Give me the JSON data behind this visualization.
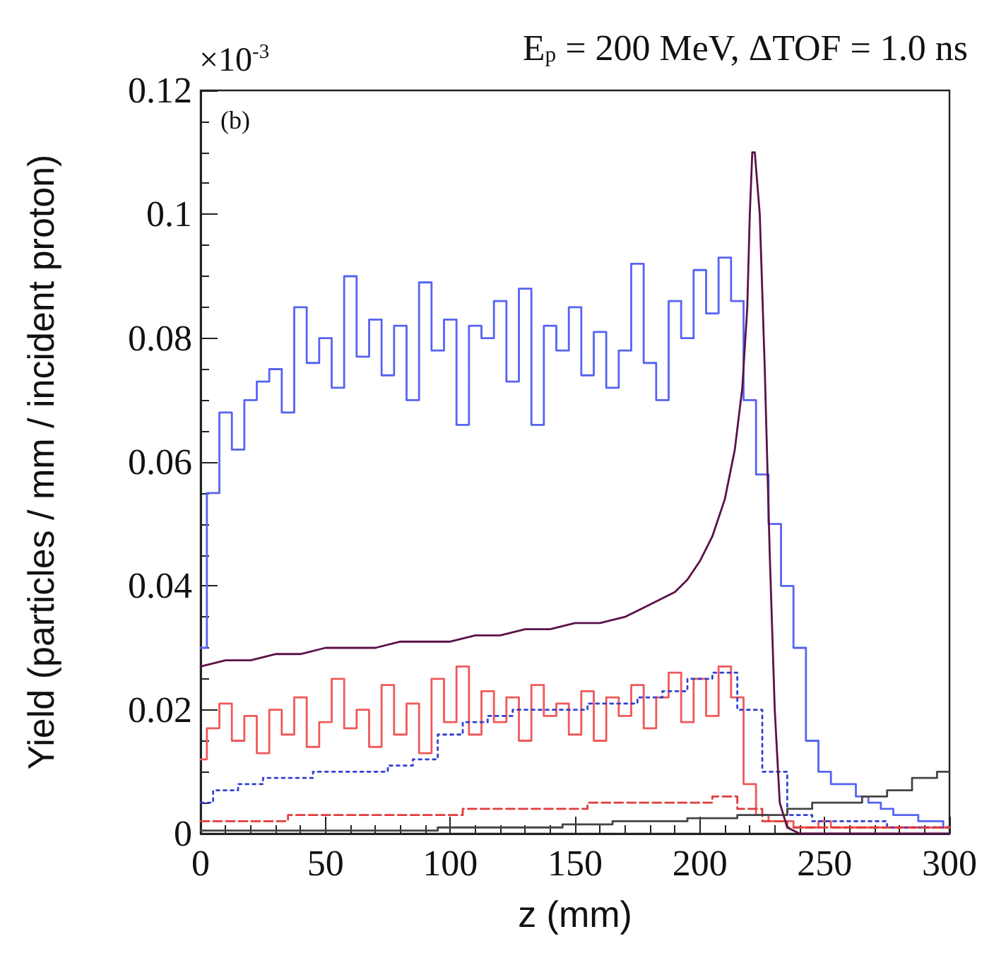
{
  "chart_data": {
    "type": "step",
    "title": "E$_{p}$ = 200 MeV, ΔTOF = 1.0 ns",
    "xlabel": "z (mm)",
    "ylabel": "Yield (particles / mm / incident proton)",
    "annotations": [
      "×10$^{-3}$",
      "(b)"
    ],
    "xlim": [
      0,
      300
    ],
    "xticks": [
      0,
      50,
      100,
      150,
      200,
      250,
      300
    ],
    "ylim": [
      0,
      0.12
    ],
    "yticks": [
      0,
      0.02,
      0.04,
      0.06,
      0.08,
      0.1,
      0.12
    ],
    "series": [
      {
        "color": "#5563f2",
        "line_style": "solid",
        "x": [
          0,
          5,
          10,
          15,
          20,
          25,
          30,
          35,
          40,
          45,
          50,
          55,
          60,
          65,
          70,
          75,
          80,
          85,
          90,
          95,
          100,
          105,
          110,
          115,
          120,
          125,
          130,
          135,
          140,
          145,
          150,
          155,
          160,
          165,
          170,
          175,
          180,
          185,
          190,
          195,
          200,
          205,
          210,
          215,
          220,
          225,
          230,
          235,
          240,
          245,
          250,
          255,
          260,
          265,
          270,
          275,
          280,
          285,
          290,
          295,
          300
        ],
        "values": [
          0.03,
          0.055,
          0.068,
          0.062,
          0.07,
          0.073,
          0.075,
          0.068,
          0.085,
          0.076,
          0.08,
          0.072,
          0.09,
          0.077,
          0.083,
          0.074,
          0.082,
          0.07,
          0.089,
          0.078,
          0.083,
          0.066,
          0.082,
          0.08,
          0.086,
          0.073,
          0.088,
          0.066,
          0.082,
          0.078,
          0.085,
          0.074,
          0.081,
          0.072,
          0.078,
          0.092,
          0.076,
          0.07,
          0.086,
          0.08,
          0.091,
          0.084,
          0.093,
          0.086,
          0.07,
          0.058,
          0.05,
          0.04,
          0.03,
          0.015,
          0.01,
          0.008,
          0.008,
          0.006,
          0.005,
          0.004,
          0.003,
          0.003,
          0.002,
          0.002,
          0.001
        ]
      },
      {
        "color": "#f05858",
        "line_style": "solid",
        "x": [
          0,
          5,
          10,
          15,
          20,
          25,
          30,
          35,
          40,
          45,
          50,
          55,
          60,
          65,
          70,
          75,
          80,
          85,
          90,
          95,
          100,
          105,
          110,
          115,
          120,
          125,
          130,
          135,
          140,
          145,
          150,
          155,
          160,
          165,
          170,
          175,
          180,
          185,
          190,
          195,
          200,
          205,
          210,
          215,
          220,
          225,
          230,
          235,
          240,
          245,
          250,
          255,
          260,
          265,
          270,
          275,
          280,
          285,
          290,
          295,
          300
        ],
        "values": [
          0.012,
          0.017,
          0.021,
          0.015,
          0.019,
          0.013,
          0.02,
          0.016,
          0.022,
          0.014,
          0.018,
          0.025,
          0.017,
          0.02,
          0.014,
          0.024,
          0.016,
          0.021,
          0.013,
          0.025,
          0.018,
          0.027,
          0.016,
          0.023,
          0.018,
          0.022,
          0.015,
          0.024,
          0.019,
          0.021,
          0.016,
          0.023,
          0.015,
          0.022,
          0.019,
          0.024,
          0.017,
          0.022,
          0.026,
          0.018,
          0.025,
          0.019,
          0.027,
          0.022,
          0.008,
          0.003,
          0.002,
          0.002,
          0.001,
          0.001,
          0.002,
          0.001,
          0.001,
          0.001,
          0.001,
          0.001,
          0.001,
          0.001,
          0.001,
          0.001,
          0.001
        ]
      },
      {
        "color": "#3340d0",
        "line_style": "dotted",
        "x": [
          0,
          10,
          20,
          30,
          40,
          50,
          60,
          70,
          80,
          90,
          100,
          110,
          120,
          130,
          140,
          150,
          160,
          170,
          180,
          190,
          200,
          210,
          220,
          230,
          240,
          250,
          260,
          270,
          280,
          290,
          300
        ],
        "values": [
          0.005,
          0.007,
          0.008,
          0.009,
          0.009,
          0.01,
          0.01,
          0.01,
          0.011,
          0.012,
          0.016,
          0.018,
          0.019,
          0.02,
          0.02,
          0.02,
          0.021,
          0.021,
          0.022,
          0.023,
          0.025,
          0.026,
          0.02,
          0.01,
          0.003,
          0.002,
          0.002,
          0.002,
          0.001,
          0.001,
          0.001
        ]
      },
      {
        "color": "#e03c3c",
        "line_style": "dashed",
        "x": [
          0,
          10,
          20,
          30,
          40,
          50,
          60,
          70,
          80,
          90,
          100,
          110,
          120,
          130,
          140,
          150,
          160,
          170,
          180,
          190,
          200,
          210,
          220,
          230,
          240,
          250,
          260,
          270,
          280,
          290,
          300
        ],
        "values": [
          0.002,
          0.002,
          0.002,
          0.002,
          0.003,
          0.003,
          0.003,
          0.003,
          0.003,
          0.003,
          0.003,
          0.004,
          0.004,
          0.004,
          0.004,
          0.004,
          0.005,
          0.005,
          0.005,
          0.005,
          0.005,
          0.006,
          0.004,
          0.002,
          0.001,
          0.001,
          0.001,
          0.001,
          0.001,
          0.001,
          0.001
        ]
      },
      {
        "color": "#444444",
        "line_style": "solid",
        "x": [
          0,
          10,
          20,
          30,
          40,
          50,
          60,
          70,
          80,
          90,
          100,
          110,
          120,
          130,
          140,
          150,
          160,
          170,
          180,
          190,
          200,
          210,
          220,
          230,
          240,
          250,
          260,
          270,
          280,
          290,
          300
        ],
        "values": [
          0.0005,
          0.0005,
          0.0005,
          0.0005,
          0.0005,
          0.0005,
          0.0005,
          0.0005,
          0.0005,
          0.0005,
          0.001,
          0.001,
          0.001,
          0.001,
          0.001,
          0.0015,
          0.0015,
          0.002,
          0.002,
          0.002,
          0.0025,
          0.0025,
          0.003,
          0.003,
          0.004,
          0.005,
          0.005,
          0.006,
          0.007,
          0.009,
          0.01
        ]
      },
      {
        "type": "line",
        "color": "#5a1248",
        "line_style": "solid",
        "x": [
          0,
          10,
          20,
          30,
          40,
          50,
          60,
          70,
          80,
          90,
          100,
          110,
          120,
          130,
          140,
          150,
          160,
          170,
          180,
          190,
          195,
          200,
          205,
          210,
          214,
          217,
          219,
          220,
          221,
          222,
          224,
          226,
          228,
          230,
          232,
          235,
          240,
          250,
          260,
          280,
          300
        ],
        "values": [
          0.027,
          0.028,
          0.028,
          0.029,
          0.029,
          0.03,
          0.03,
          0.03,
          0.031,
          0.031,
          0.031,
          0.032,
          0.032,
          0.033,
          0.033,
          0.034,
          0.034,
          0.035,
          0.037,
          0.039,
          0.041,
          0.044,
          0.048,
          0.054,
          0.062,
          0.072,
          0.085,
          0.1,
          0.11,
          0.11,
          0.1,
          0.075,
          0.045,
          0.02,
          0.005,
          0.001,
          0,
          0,
          0,
          0,
          0
        ]
      }
    ]
  }
}
